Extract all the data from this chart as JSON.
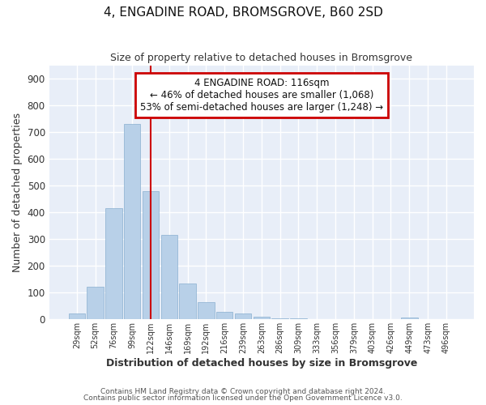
{
  "title1": "4, ENGADINE ROAD, BROMSGROVE, B60 2SD",
  "title2": "Size of property relative to detached houses in Bromsgrove",
  "xlabel": "Distribution of detached houses by size in Bromsgrove",
  "ylabel": "Number of detached properties",
  "categories": [
    "29sqm",
    "52sqm",
    "76sqm",
    "99sqm",
    "122sqm",
    "146sqm",
    "169sqm",
    "192sqm",
    "216sqm",
    "239sqm",
    "263sqm",
    "286sqm",
    "309sqm",
    "333sqm",
    "356sqm",
    "379sqm",
    "403sqm",
    "426sqm",
    "449sqm",
    "473sqm",
    "496sqm"
  ],
  "values": [
    22,
    123,
    416,
    730,
    480,
    315,
    133,
    65,
    28,
    22,
    11,
    5,
    5,
    0,
    0,
    0,
    0,
    0,
    8,
    0,
    0
  ],
  "bar_color": "#b8d0e8",
  "bar_edge_color": "#8ab0d0",
  "vline_color": "#cc0000",
  "annotation_lines": [
    "4 ENGADINE ROAD: 116sqm",
    "← 46% of detached houses are smaller (1,068)",
    "53% of semi-detached houses are larger (1,248) →"
  ],
  "annotation_box_color": "#cc0000",
  "ylim": [
    0,
    950
  ],
  "yticks": [
    0,
    100,
    200,
    300,
    400,
    500,
    600,
    700,
    800,
    900
  ],
  "background_color": "#e8eef8",
  "footnote1": "Contains HM Land Registry data © Crown copyright and database right 2024.",
  "footnote2": "Contains public sector information licensed under the Open Government Licence v3.0."
}
